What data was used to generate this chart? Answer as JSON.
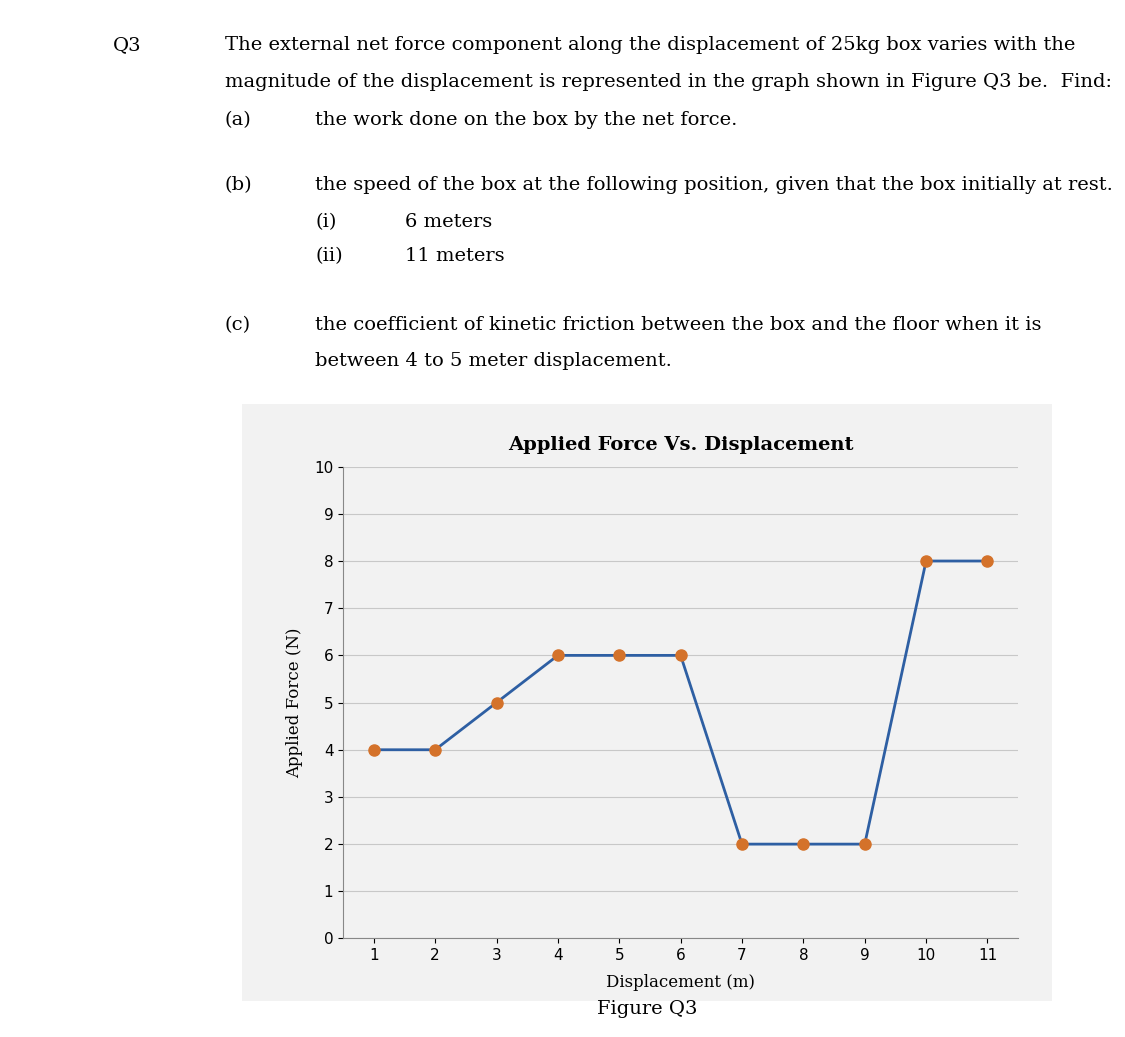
{
  "title": "Applied Force Vs. Displacement",
  "xlabel": "Displacement (m)",
  "ylabel": "Applied Force (N)",
  "figure_caption": "Figure Q3",
  "x_data": [
    1,
    2,
    3,
    4,
    5,
    6,
    7,
    8,
    9,
    10,
    11
  ],
  "y_data": [
    4,
    4,
    5,
    6,
    6,
    6,
    2,
    2,
    2,
    8,
    8
  ],
  "line_color": "#2e5fa3",
  "marker_color": "#d4722a",
  "xlim": [
    0.5,
    11.5
  ],
  "ylim": [
    0,
    10
  ],
  "xticks": [
    1,
    2,
    3,
    4,
    5,
    6,
    7,
    8,
    9,
    10,
    11
  ],
  "yticks": [
    0,
    1,
    2,
    3,
    4,
    5,
    6,
    7,
    8,
    9,
    10
  ],
  "line_width": 2.0,
  "marker_size": 8,
  "bg_color": "#f2f2f2",
  "title_fontsize": 14,
  "axis_label_fontsize": 12,
  "tick_fontsize": 11,
  "text_fontsize": 14
}
